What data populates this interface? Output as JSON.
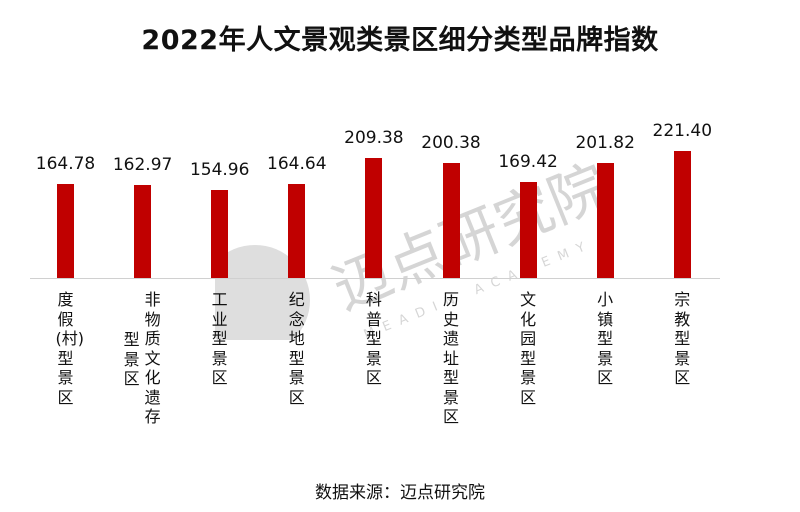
{
  "title": "2022年人文景观类景区细分类型品牌指数",
  "source": "数据来源：迈点研究院",
  "watermark": {
    "cn": "迈点研究院",
    "en": "MEADIN ACADEMY"
  },
  "colors": {
    "bar": "#c00000",
    "baseline": "#d0d0d0",
    "text": "#111111"
  },
  "chart_data": {
    "type": "bar",
    "title": "2022年人文景观类景区细分类型品牌指数",
    "categories": [
      "度假(村)型景区",
      "非物质文化遗存型景区",
      "工业型景区",
      "纪念地型景区",
      "科普型景区",
      "历史遗址型景区",
      "文化园型景区",
      "小镇型景区",
      "宗教型景区"
    ],
    "values": [
      164.78,
      162.97,
      154.96,
      164.64,
      209.38,
      200.38,
      169.42,
      201.82,
      221.4
    ],
    "value_labels": [
      "164.78",
      "162.97",
      "154.96",
      "164.64",
      "209.38",
      "200.38",
      "169.42",
      "201.82",
      "221.40"
    ],
    "xlabel": "",
    "ylabel": "",
    "grid": false,
    "legend": null,
    "data_labels": true,
    "label_orientation": "vertical",
    "annotation": "数据来源：迈点研究院"
  },
  "labels_split": {
    "1": [
      "非物质文化遗存",
      "型景区"
    ]
  }
}
